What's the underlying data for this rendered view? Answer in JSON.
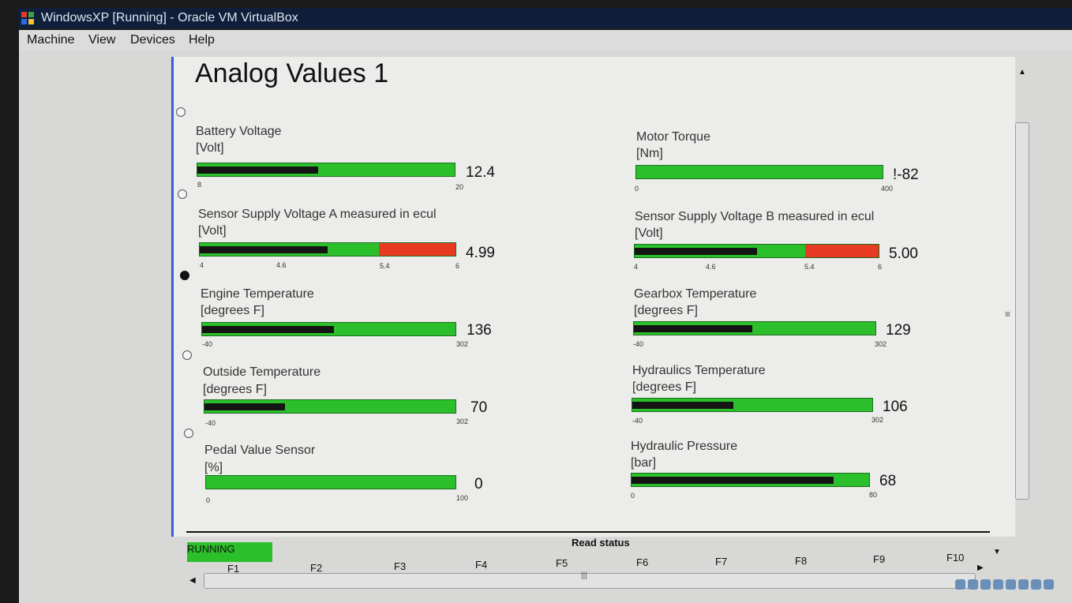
{
  "window": {
    "title": "WindowsXP [Running] - Oracle VM VirtualBox"
  },
  "menu": [
    "Machine",
    "View",
    "Devices",
    "Help"
  ],
  "page": {
    "heading": "Analog Values 1"
  },
  "gauges": [
    {
      "name": "Battery Voltage",
      "unit": "[Volt]",
      "value": "12.4",
      "ticks": [
        "8",
        "20"
      ],
      "fill_fraction": 0.47,
      "red_from": null
    },
    {
      "name": "Motor Torque",
      "unit": "[Nm]",
      "value": "!-82",
      "ticks": [
        "0",
        "400"
      ],
      "fill_fraction": 0,
      "red_from": null
    },
    {
      "name": "Sensor Supply Voltage A  measured in ecul",
      "unit": "[Volt]",
      "value": "4.99",
      "ticks": [
        "4",
        "4.6",
        "5.4",
        "6"
      ],
      "fill_fraction": 0.5,
      "red_from": 0.7
    },
    {
      "name": "Sensor Supply Voltage B  measured in ecul",
      "unit": "[Volt]",
      "value": "5.00",
      "ticks": [
        "4",
        "4.6",
        "5.4",
        "6"
      ],
      "fill_fraction": 0.5,
      "red_from": 0.7
    },
    {
      "name": "Engine Temperature",
      "unit": "[degrees F]",
      "value": "136",
      "ticks": [
        "-40",
        "302"
      ],
      "fill_fraction": 0.52,
      "red_from": null
    },
    {
      "name": "Gearbox Temperature",
      "unit": "[degrees F]",
      "value": "129",
      "ticks": [
        "-40",
        "302"
      ],
      "fill_fraction": 0.49,
      "red_from": null
    },
    {
      "name": "Outside Temperature",
      "unit": "[degrees F]",
      "value": "70",
      "ticks": [
        "-40",
        "302"
      ],
      "fill_fraction": 0.32,
      "red_from": null
    },
    {
      "name": "Hydraulics Temperature",
      "unit": "[degrees F]",
      "value": "106",
      "ticks": [
        "-40",
        "302"
      ],
      "fill_fraction": 0.42,
      "red_from": null
    },
    {
      "name": "Pedal Value Sensor",
      "unit": "[%]",
      "value": "0",
      "ticks": [
        "0",
        "100"
      ],
      "fill_fraction": 0,
      "red_from": null
    },
    {
      "name": "Hydraulic Pressure",
      "unit": "[bar]",
      "value": "68",
      "ticks": [
        "0",
        "80"
      ],
      "fill_fraction": 0.85,
      "red_from": null
    }
  ],
  "status": {
    "running": "RUNNING",
    "read_status": "Read status"
  },
  "fkeys": [
    "F1",
    "F2",
    "F3",
    "F4",
    "F5",
    "F6",
    "F7",
    "F8",
    "F9",
    "F10"
  ],
  "colors": {
    "bar_green": "#2bc02b",
    "bar_fill": "#141414",
    "bar_red": "#e83a22",
    "accent_border": "#3b5bd6"
  }
}
